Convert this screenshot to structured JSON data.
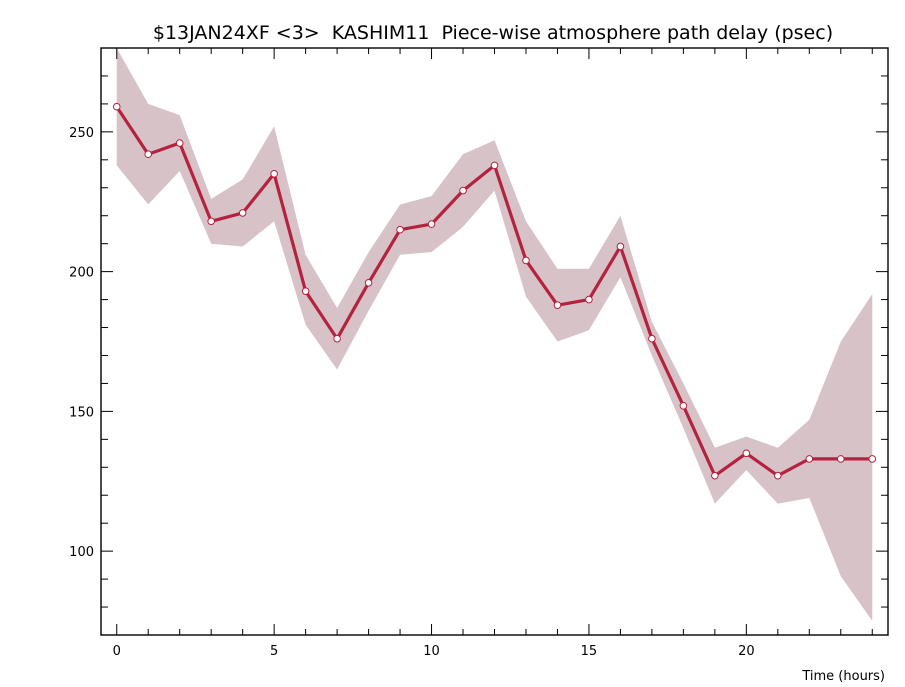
{
  "chart_data": {
    "type": "line",
    "title": "$13JAN24XF <3>  KASHIM11  Piece-wise atmosphere path delay (psec)",
    "xlabel": "Time (hours)",
    "ylabel": "",
    "xlim": [
      -0.5,
      24.5
    ],
    "ylim": [
      70,
      280
    ],
    "x_ticks": [
      0,
      5,
      10,
      15,
      20
    ],
    "y_ticks": [
      100,
      150,
      200,
      250
    ],
    "grid": false,
    "colors": {
      "line": "#b5223f",
      "band": "#d7c3c7",
      "marker_fill": "#ffffff"
    },
    "series": [
      {
        "x": [
          0,
          1,
          2,
          3,
          4,
          5,
          6,
          7,
          8,
          9,
          10,
          11,
          12,
          13,
          14,
          15,
          16,
          17,
          18,
          19,
          20,
          21,
          22,
          23,
          24
        ],
        "values": [
          259,
          242,
          246,
          218,
          221,
          235,
          193,
          176,
          196,
          215,
          217,
          229,
          238,
          204,
          188,
          190,
          209,
          176,
          152,
          127,
          135,
          127,
          133,
          133,
          133
        ],
        "upper": [
          280,
          260,
          256,
          226,
          233,
          252,
          206,
          187,
          207,
          224,
          227,
          242,
          247,
          218,
          201,
          201,
          220,
          182,
          160,
          137,
          141,
          137,
          147,
          175,
          192
        ],
        "lower": [
          238,
          224,
          236,
          210,
          209,
          218,
          181,
          165,
          186,
          206,
          207,
          216,
          229,
          191,
          175,
          179,
          198,
          170,
          144,
          117,
          129,
          117,
          119,
          91,
          75
        ]
      }
    ]
  }
}
